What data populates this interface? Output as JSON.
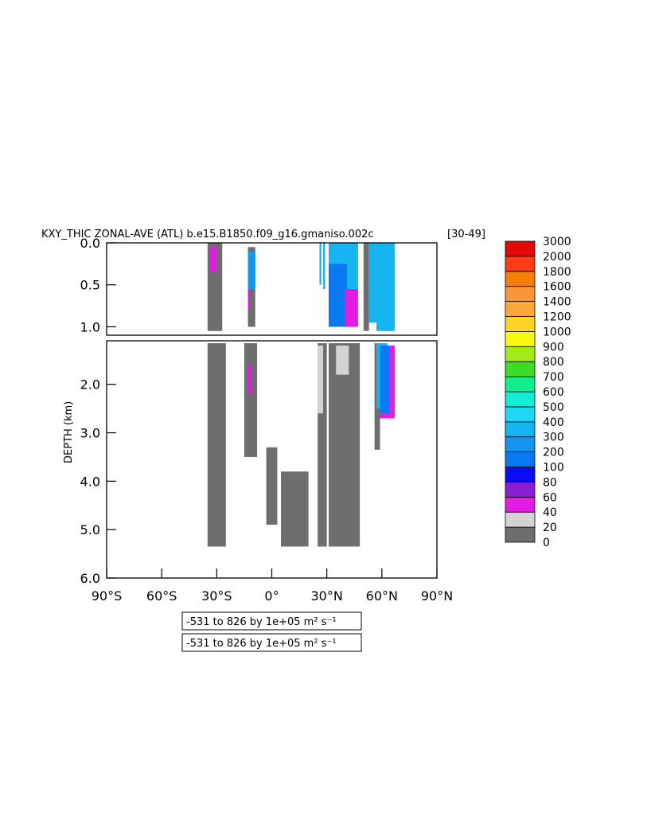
{
  "chart_data": {
    "type": "heatmap",
    "title": "KXY_THIC ZONAL-AVE (ATL) b.e15.B1850.f09_g16.gmaniso.002c",
    "title_suffix": "[30-49]",
    "xlabel": "",
    "ylabel": "DEPTH (km)",
    "x_ticks": [
      "90°S",
      "60°S",
      "30°S",
      "0°",
      "30°N",
      "60°N",
      "90°N"
    ],
    "x_tick_values": [
      -90,
      -60,
      -30,
      0,
      30,
      60,
      90
    ],
    "xlim": [
      -90,
      90
    ],
    "ylim": [
      6.0,
      0.0
    ],
    "y_ticks_upper": [
      "0.0",
      "0.5",
      "1.0"
    ],
    "y_tick_values_upper": [
      0.0,
      0.5,
      1.0
    ],
    "upper_panel_depth": [
      0.0,
      1.1
    ],
    "y_ticks_lower": [
      "2.0",
      "3.0",
      "4.0",
      "5.0",
      "6.0"
    ],
    "y_tick_values_lower": [
      2.0,
      3.0,
      4.0,
      5.0,
      6.0
    ],
    "lower_panel_depth": [
      1.1,
      6.0
    ],
    "colorbar": {
      "levels": [
        "0",
        "20",
        "40",
        "60",
        "80",
        "100",
        "200",
        "300",
        "400",
        "500",
        "600",
        "700",
        "800",
        "900",
        "1000",
        "1200",
        "1400",
        "1600",
        "1800",
        "2000",
        "3000"
      ],
      "colors": [
        "#6e6e6e",
        "#d3d3d3",
        "#e41be4",
        "#8a1ed4",
        "#0a0af5",
        "#0a78f0",
        "#1496f0",
        "#16b4f0",
        "#1ed8f2",
        "#12eed6",
        "#14ee8a",
        "#3cdc28",
        "#a2ea18",
        "#f8f80a",
        "#fbd424",
        "#fba83a",
        "#fb9638",
        "#f58005",
        "#ff3c14",
        "#e50808"
      ]
    },
    "regions": [
      {
        "level": 0,
        "lat": [
          -35,
          -27
        ],
        "depth": [
          0.0,
          1.05
        ]
      },
      {
        "level": 0,
        "lat": [
          -35,
          -25
        ],
        "depth": [
          1.15,
          5.35
        ]
      },
      {
        "level": 2,
        "lat": [
          -34,
          -30
        ],
        "depth": [
          0.05,
          0.35
        ]
      },
      {
        "level": 0,
        "lat": [
          -13,
          -9
        ],
        "depth": [
          0.05,
          1.0
        ]
      },
      {
        "level": 0,
        "lat": [
          -15,
          -8
        ],
        "depth": [
          1.15,
          3.5
        ]
      },
      {
        "level": 6,
        "lat": [
          -13,
          -9
        ],
        "depth": [
          0.1,
          0.55
        ]
      },
      {
        "level": 2,
        "lat": [
          -13,
          -12
        ],
        "depth": [
          0.55,
          0.8
        ]
      },
      {
        "level": 2,
        "lat": [
          -13,
          -11
        ],
        "depth": [
          1.6,
          2.2
        ]
      },
      {
        "level": 0,
        "lat": [
          -3,
          3
        ],
        "depth": [
          3.3,
          4.9
        ]
      },
      {
        "level": 0,
        "lat": [
          5,
          20
        ],
        "depth": [
          3.8,
          5.35
        ]
      },
      {
        "level": 0,
        "lat": [
          25,
          30
        ],
        "depth": [
          1.15,
          5.35
        ]
      },
      {
        "level": 1,
        "lat": [
          25,
          28
        ],
        "depth": [
          1.2,
          2.6
        ]
      },
      {
        "level": 0,
        "lat": [
          31,
          48
        ],
        "depth": [
          1.15,
          5.35
        ]
      },
      {
        "level": 1,
        "lat": [
          35,
          42
        ],
        "depth": [
          1.2,
          1.8
        ]
      },
      {
        "level": 7,
        "lat": [
          26,
          27
        ],
        "depth": [
          0.0,
          0.5
        ]
      },
      {
        "level": 7,
        "lat": [
          28,
          29
        ],
        "depth": [
          0.0,
          0.55
        ]
      },
      {
        "level": 7,
        "lat": [
          31,
          47
        ],
        "depth": [
          0.0,
          1.0
        ]
      },
      {
        "level": 5,
        "lat": [
          31,
          41
        ],
        "depth": [
          0.25,
          1.0
        ]
      },
      {
        "level": 2,
        "lat": [
          40,
          47
        ],
        "depth": [
          0.55,
          1.0
        ]
      },
      {
        "level": 0,
        "lat": [
          50,
          53
        ],
        "depth": [
          0.0,
          1.05
        ]
      },
      {
        "level": 7,
        "lat": [
          53,
          57
        ],
        "depth": [
          0.0,
          0.95
        ]
      },
      {
        "level": 0,
        "lat": [
          56,
          59
        ],
        "depth": [
          1.15,
          3.35
        ]
      },
      {
        "level": 7,
        "lat": [
          57,
          67
        ],
        "depth": [
          0.0,
          1.05
        ]
      },
      {
        "level": 7,
        "lat": [
          57,
          63
        ],
        "depth": [
          1.15,
          2.5
        ]
      },
      {
        "level": 2,
        "lat": [
          59,
          67
        ],
        "depth": [
          1.2,
          2.7
        ]
      },
      {
        "level": 5,
        "lat": [
          59,
          64
        ],
        "depth": [
          1.2,
          2.6
        ]
      }
    ],
    "range_labels": [
      "-531 to 826 by 1e+05 m² s⁻¹",
      "-531 to 826 by 1e+05 m² s⁻¹"
    ]
  }
}
